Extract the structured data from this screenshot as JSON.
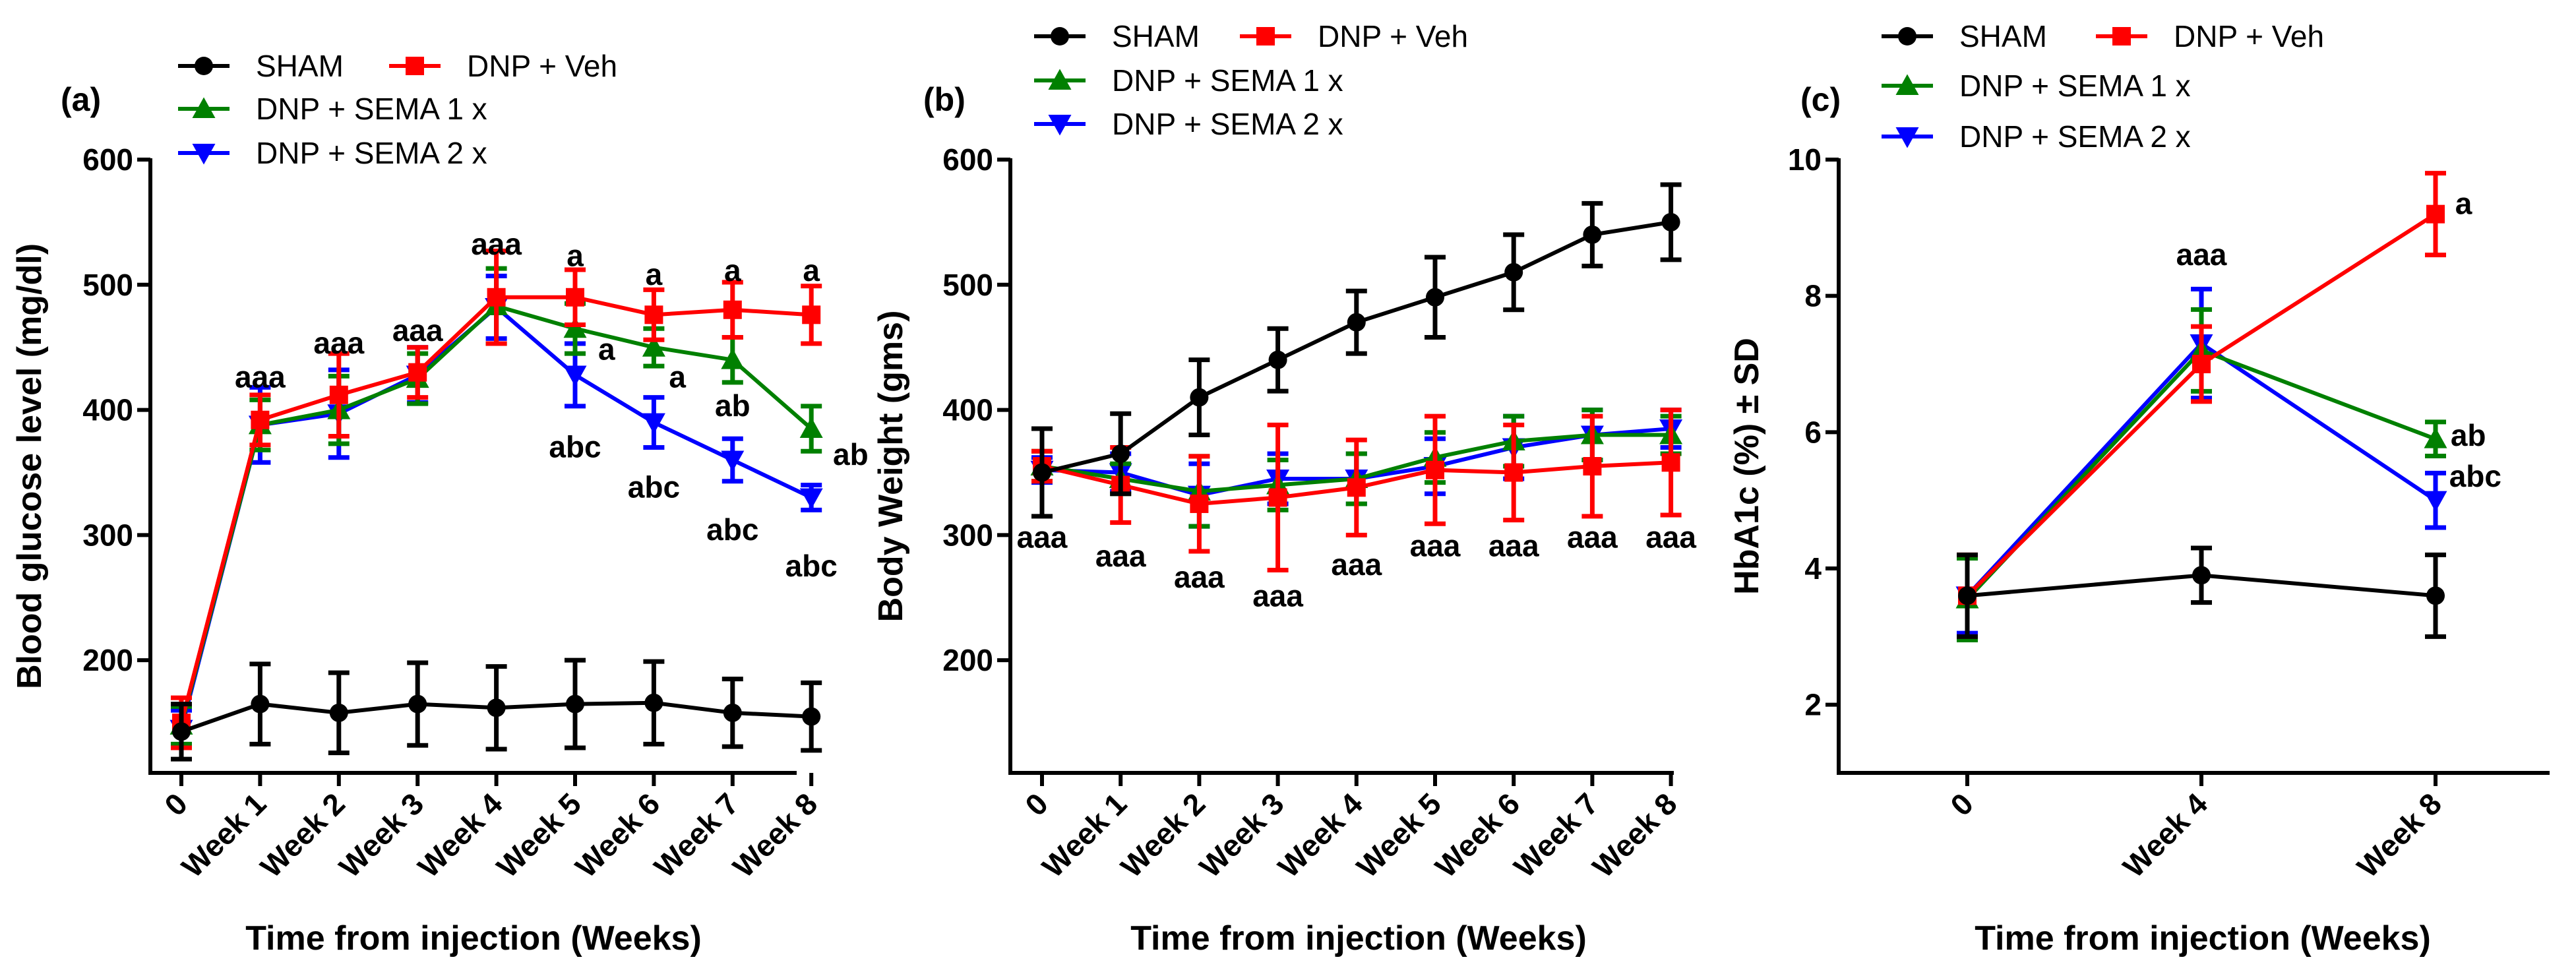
{
  "colors": {
    "sham": "#000000",
    "veh": "#ff0000",
    "sema1": "#008000",
    "sema2": "#0000ff"
  },
  "legend_labels": {
    "sham": "SHAM",
    "veh": "DNP + Veh",
    "sema1": "DNP + SEMA 1 x",
    "sema2": "DNP + SEMA 2 x"
  },
  "chart_data": [
    {
      "type": "line",
      "panel_label": "(a)",
      "xlabel": "Time from injection (Weeks)",
      "ylabel": "Blood glucose level (mg/dl)",
      "categories": [
        "0",
        "Week 1",
        "Week 2",
        "Week 3",
        "Week 4",
        "Week 5",
        "Week 6",
        "Week 7",
        "Week 8"
      ],
      "yticks": [
        200,
        300,
        400,
        500,
        600
      ],
      "ylim": [
        110,
        600
      ],
      "series": [
        {
          "key": "sham",
          "name": "SHAM",
          "marker": "circle",
          "values": [
            143,
            165,
            158,
            165,
            162,
            165,
            166,
            158,
            155
          ],
          "errors": [
            22,
            32,
            32,
            33,
            33,
            35,
            33,
            27,
            27
          ]
        },
        {
          "key": "veh",
          "name": "DNP + Veh",
          "marker": "square",
          "values": [
            150,
            392,
            412,
            430,
            490,
            490,
            476,
            480,
            476
          ],
          "errors": [
            20,
            20,
            33,
            20,
            37,
            22,
            20,
            22,
            23
          ]
        },
        {
          "key": "sema1",
          "name": "DNP + SEMA 1 x",
          "marker": "triangle-up",
          "values": [
            148,
            388,
            400,
            425,
            483,
            465,
            450,
            440,
            385
          ],
          "errors": [
            15,
            20,
            27,
            20,
            30,
            20,
            15,
            18,
            18
          ]
        },
        {
          "key": "sema2",
          "name": "DNP + SEMA 2 x",
          "marker": "triangle-down",
          "values": [
            145,
            388,
            397,
            428,
            482,
            428,
            390,
            360,
            330
          ],
          "errors": [
            15,
            30,
            35,
            22,
            25,
            25,
            20,
            17,
            10
          ]
        }
      ],
      "annotations": [
        {
          "text": "aaa",
          "x": 1,
          "y": 418
        },
        {
          "text": "aaa",
          "x": 2,
          "y": 445
        },
        {
          "text": "aaa",
          "x": 3,
          "y": 455
        },
        {
          "text": "aaa",
          "x": 4,
          "y": 524
        },
        {
          "text": "a",
          "x": 5,
          "y": 515
        },
        {
          "text": "a",
          "x": 6,
          "y": 500
        },
        {
          "text": "a",
          "x": 7,
          "y": 503
        },
        {
          "text": "a",
          "x": 8,
          "y": 503
        },
        {
          "text": "a",
          "x": 5.4,
          "y": 440
        },
        {
          "text": "a",
          "x": 6.3,
          "y": 418
        },
        {
          "text": "ab",
          "x": 7,
          "y": 395
        },
        {
          "text": "ab",
          "x": 8.5,
          "y": 356
        },
        {
          "text": "abc",
          "x": 5,
          "y": 362
        },
        {
          "text": "abc",
          "x": 6,
          "y": 330
        },
        {
          "text": "abc",
          "x": 7,
          "y": 296
        },
        {
          "text": "abc",
          "x": 8,
          "y": 267
        }
      ]
    },
    {
      "type": "line",
      "panel_label": "(b)",
      "xlabel": "Time from injection (Weeks)",
      "ylabel": "Body Weight (gms)",
      "categories": [
        "0",
        "Week 1",
        "Week 2",
        "Week 3",
        "Week 4",
        "Week 5",
        "Week 6",
        "Week 7",
        "Week 8"
      ],
      "yticks": [
        200,
        300,
        400,
        500,
        600
      ],
      "ylim": [
        110,
        600
      ],
      "series": [
        {
          "key": "sham",
          "name": "SHAM",
          "marker": "circle",
          "values": [
            350,
            365,
            410,
            440,
            470,
            490,
            510,
            540,
            550
          ],
          "errors": [
            35,
            32,
            30,
            25,
            25,
            32,
            30,
            25,
            30
          ]
        },
        {
          "key": "veh",
          "name": "DNP + Veh",
          "marker": "square",
          "values": [
            355,
            340,
            325,
            330,
            338,
            352,
            350,
            355,
            358
          ],
          "errors": [
            12,
            30,
            38,
            58,
            38,
            43,
            38,
            40,
            42
          ]
        },
        {
          "key": "sema1",
          "name": "DNP + SEMA 1 x",
          "marker": "triangle-up",
          "values": [
            355,
            345,
            335,
            340,
            345,
            362,
            375,
            380,
            380
          ],
          "errors": [
            12,
            12,
            28,
            20,
            20,
            20,
            20,
            20,
            15
          ]
        },
        {
          "key": "sema2",
          "name": "DNP + SEMA 2 x",
          "marker": "triangle-down",
          "values": [
            352,
            350,
            332,
            345,
            345,
            355,
            370,
            380,
            385
          ],
          "errors": [
            10,
            15,
            25,
            20,
            20,
            22,
            25,
            20,
            15
          ]
        }
      ],
      "annotations": [
        {
          "text": "aaa",
          "x": 0,
          "y": 290
        },
        {
          "text": "aaa",
          "x": 1,
          "y": 275
        },
        {
          "text": "aaa",
          "x": 2,
          "y": 258
        },
        {
          "text": "aaa",
          "x": 3,
          "y": 243
        },
        {
          "text": "aaa",
          "x": 4,
          "y": 268
        },
        {
          "text": "aaa",
          "x": 5,
          "y": 283
        },
        {
          "text": "aaa",
          "x": 6,
          "y": 283
        },
        {
          "text": "aaa",
          "x": 7,
          "y": 290
        },
        {
          "text": "aaa",
          "x": 8,
          "y": 290
        }
      ]
    },
    {
      "type": "line",
      "panel_label": "(c)",
      "xlabel": "Time from injection (Weeks)",
      "ylabel": "HbA1c (%) ± SD",
      "categories": [
        "0",
        "Week 4",
        "Week 8"
      ],
      "yticks": [
        2,
        4,
        6,
        8,
        10
      ],
      "ylim": [
        1,
        10
      ],
      "series": [
        {
          "key": "sham",
          "name": "SHAM",
          "marker": "circle",
          "values": [
            3.6,
            3.9,
            3.6
          ],
          "errors": [
            0.6,
            0.4,
            0.6
          ]
        },
        {
          "key": "veh",
          "name": "DNP + Veh",
          "marker": "square",
          "values": [
            3.6,
            7.0,
            9.2
          ],
          "errors": [
            0.6,
            0.55,
            0.6
          ]
        },
        {
          "key": "sema1",
          "name": "DNP + SEMA 1 x",
          "marker": "triangle-up",
          "values": [
            3.55,
            7.2,
            5.9
          ],
          "errors": [
            0.6,
            0.6,
            0.25
          ]
        },
        {
          "key": "sema2",
          "name": "DNP + SEMA 2 x",
          "marker": "triangle-down",
          "values": [
            3.6,
            7.3,
            5.0
          ],
          "errors": [
            0.55,
            0.8,
            0.4
          ]
        }
      ],
      "annotations": [
        {
          "text": "aaa",
          "x": 1,
          "y": 8.45
        },
        {
          "text": "a",
          "x": 2.12,
          "y": 9.2
        },
        {
          "text": "ab",
          "x": 2.14,
          "y": 5.8
        },
        {
          "text": "abc",
          "x": 2.17,
          "y": 5.2
        }
      ]
    }
  ]
}
